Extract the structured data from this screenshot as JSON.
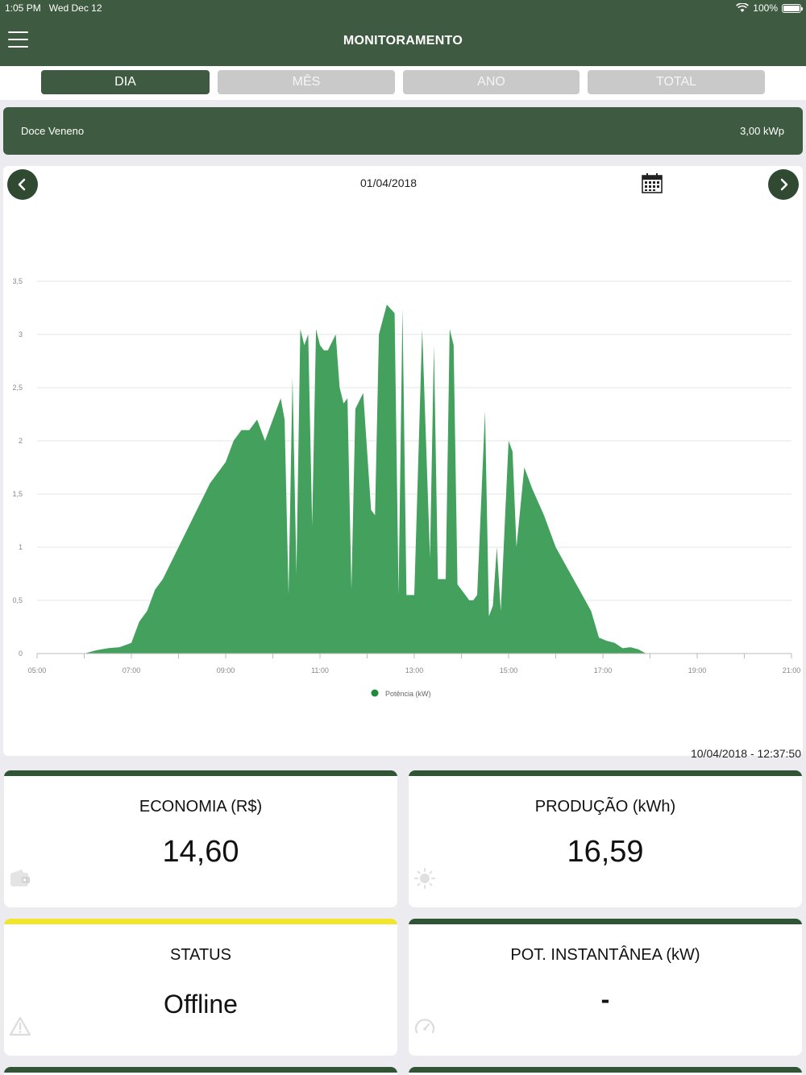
{
  "status_bar": {
    "time": "1:05 PM",
    "date": "Wed Dec 12",
    "battery": "100%"
  },
  "nav": {
    "title": "MONITORAMENTO",
    "menu_icon": "hamburger-menu-icon"
  },
  "tabs": [
    {
      "label": "DIA",
      "active": true
    },
    {
      "label": "MÊS",
      "active": false
    },
    {
      "label": "ANO",
      "active": false
    },
    {
      "label": "TOTAL",
      "active": false
    }
  ],
  "plant": {
    "name": "Doce Veneno",
    "capacity": "3,00 kWp"
  },
  "chart_header": {
    "date": "01/04/2018",
    "prev_icon": "chevron-left-icon",
    "next_icon": "chevron-right-icon",
    "calendar_icon": "calendar-icon"
  },
  "chart_data": {
    "type": "area",
    "xlabel": "",
    "ylabel": "",
    "xlim": [
      "05:00",
      "21:00"
    ],
    "ylim": [
      0,
      3.5
    ],
    "x_ticks": [
      "05:00",
      "07:00",
      "09:00",
      "11:00",
      "13:00",
      "15:00",
      "17:00",
      "19:00",
      "21:00"
    ],
    "y_ticks": [
      "0",
      "0,5",
      "1",
      "1,5",
      "2",
      "2,5",
      "3",
      "3,5"
    ],
    "grid": true,
    "legend": "bottom-center",
    "color": "#43a05d",
    "series": [
      {
        "name": "Potência (kW)",
        "points": [
          [
            "06:00",
            0
          ],
          [
            "06:15",
            0.03
          ],
          [
            "06:30",
            0.05
          ],
          [
            "06:45",
            0.06
          ],
          [
            "07:00",
            0.1
          ],
          [
            "07:10",
            0.3
          ],
          [
            "07:20",
            0.4
          ],
          [
            "07:30",
            0.6
          ],
          [
            "07:40",
            0.7
          ],
          [
            "08:00",
            1.0
          ],
          [
            "08:20",
            1.3
          ],
          [
            "08:40",
            1.6
          ],
          [
            "09:00",
            1.8
          ],
          [
            "09:10",
            2.0
          ],
          [
            "09:20",
            2.1
          ],
          [
            "09:30",
            2.1
          ],
          [
            "09:40",
            2.2
          ],
          [
            "09:50",
            2.0
          ],
          [
            "10:00",
            2.2
          ],
          [
            "10:10",
            2.4
          ],
          [
            "10:15",
            2.2
          ],
          [
            "10:20",
            0.55
          ],
          [
            "10:25",
            2.6
          ],
          [
            "10:30",
            0.75
          ],
          [
            "10:35",
            3.05
          ],
          [
            "10:40",
            2.9
          ],
          [
            "10:45",
            3.0
          ],
          [
            "10:50",
            1.2
          ],
          [
            "10:55",
            3.05
          ],
          [
            "11:00",
            2.9
          ],
          [
            "11:05",
            2.85
          ],
          [
            "11:10",
            2.85
          ],
          [
            "11:20",
            3.0
          ],
          [
            "11:25",
            2.5
          ],
          [
            "11:30",
            2.35
          ],
          [
            "11:35",
            2.4
          ],
          [
            "11:40",
            0.6
          ],
          [
            "11:45",
            2.3
          ],
          [
            "11:55",
            2.45
          ],
          [
            "12:05",
            1.35
          ],
          [
            "12:10",
            1.3
          ],
          [
            "12:15",
            3.0
          ],
          [
            "12:25",
            3.28
          ],
          [
            "12:35",
            3.2
          ],
          [
            "12:40",
            0.55
          ],
          [
            "12:45",
            3.25
          ],
          [
            "12:50",
            0.55
          ],
          [
            "13:00",
            0.55
          ],
          [
            "13:10",
            3.05
          ],
          [
            "13:20",
            0.9
          ],
          [
            "13:25",
            2.9
          ],
          [
            "13:30",
            0.7
          ],
          [
            "13:40",
            0.7
          ],
          [
            "13:45",
            3.05
          ],
          [
            "13:50",
            2.9
          ],
          [
            "13:55",
            0.65
          ],
          [
            "14:05",
            0.55
          ],
          [
            "14:10",
            0.5
          ],
          [
            "14:15",
            0.5
          ],
          [
            "14:20",
            0.55
          ],
          [
            "14:30",
            2.28
          ],
          [
            "14:35",
            0.35
          ],
          [
            "14:40",
            0.45
          ],
          [
            "14:45",
            1.0
          ],
          [
            "14:50",
            0.4
          ],
          [
            "15:00",
            2.0
          ],
          [
            "15:05",
            1.9
          ],
          [
            "15:10",
            1.0
          ],
          [
            "15:20",
            1.75
          ],
          [
            "15:30",
            1.55
          ],
          [
            "15:45",
            1.3
          ],
          [
            "16:00",
            1.0
          ],
          [
            "16:15",
            0.8
          ],
          [
            "16:30",
            0.6
          ],
          [
            "16:45",
            0.4
          ],
          [
            "16:55",
            0.15
          ],
          [
            "17:05",
            0.12
          ],
          [
            "17:15",
            0.1
          ],
          [
            "17:25",
            0.05
          ],
          [
            "17:35",
            0.06
          ],
          [
            "17:45",
            0.04
          ],
          [
            "17:55",
            0.0
          ]
        ]
      }
    ]
  },
  "last_update": "10/04/2018 - 12:37:50",
  "cards": [
    {
      "label": "ECONOMIA (R$)",
      "value": "14,60",
      "icon": "wallet-icon",
      "accent": "#2f5536"
    },
    {
      "label": "PRODUÇÃO (kWh)",
      "value": "16,59",
      "icon": "sun-icon",
      "accent": "#2f5536"
    },
    {
      "label": "STATUS",
      "value": "Offline",
      "icon": "warning-icon",
      "accent": "#f1e62d"
    },
    {
      "label": "POT. INSTANTÂNEA (kW)",
      "value": "-",
      "icon": "gauge-icon",
      "accent": "#2f5536"
    }
  ]
}
